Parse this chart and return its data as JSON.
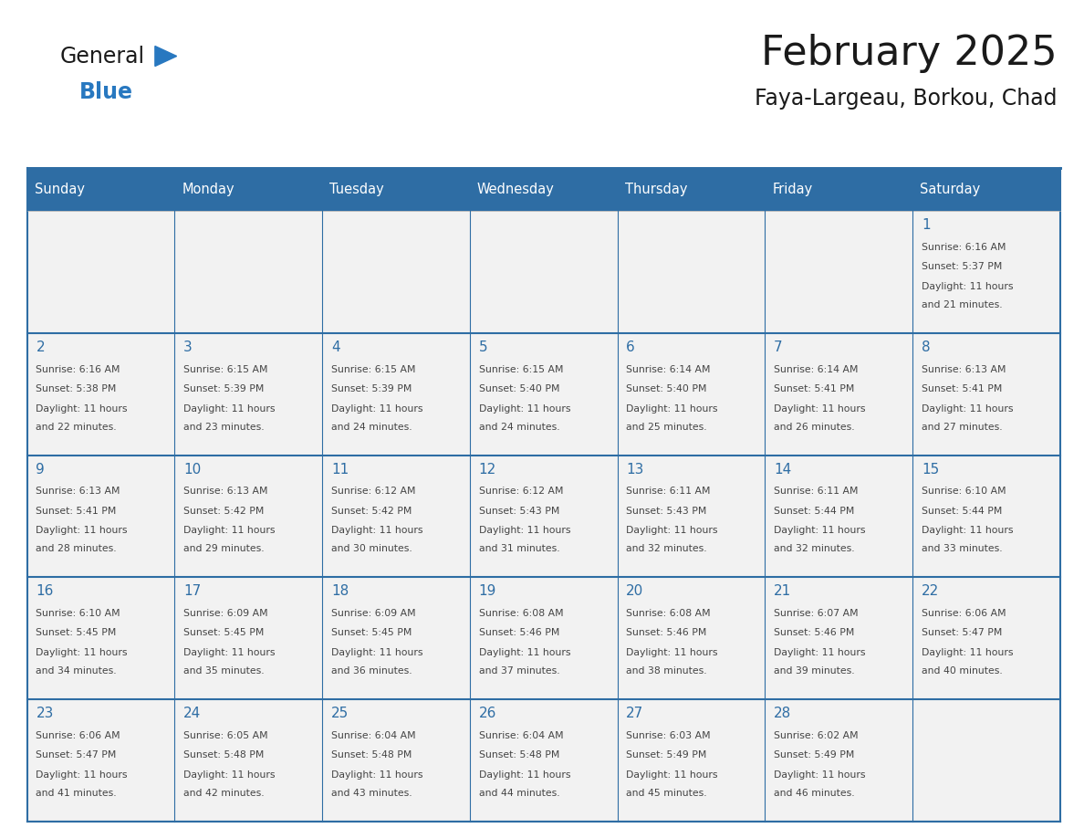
{
  "title": "February 2025",
  "subtitle": "Faya-Largeau, Borkou, Chad",
  "header_bg": "#2E6DA4",
  "header_text_color": "#FFFFFF",
  "cell_bg": "#F2F2F2",
  "day_headers": [
    "Sunday",
    "Monday",
    "Tuesday",
    "Wednesday",
    "Thursday",
    "Friday",
    "Saturday"
  ],
  "title_color": "#1a1a1a",
  "subtitle_color": "#1a1a1a",
  "day_number_color": "#2E6DA4",
  "cell_text_color": "#444444",
  "grid_color": "#2E6DA4",
  "logo_general_color": "#1a1a1a",
  "logo_blue_color": "#2878C0",
  "logo_triangle_color": "#2878C0",
  "days": [
    {
      "day": 1,
      "col": 6,
      "row": 0,
      "sunrise": "6:16 AM",
      "sunset": "5:37 PM",
      "daylight": "11 hours and 21 minutes."
    },
    {
      "day": 2,
      "col": 0,
      "row": 1,
      "sunrise": "6:16 AM",
      "sunset": "5:38 PM",
      "daylight": "11 hours and 22 minutes."
    },
    {
      "day": 3,
      "col": 1,
      "row": 1,
      "sunrise": "6:15 AM",
      "sunset": "5:39 PM",
      "daylight": "11 hours and 23 minutes."
    },
    {
      "day": 4,
      "col": 2,
      "row": 1,
      "sunrise": "6:15 AM",
      "sunset": "5:39 PM",
      "daylight": "11 hours and 24 minutes."
    },
    {
      "day": 5,
      "col": 3,
      "row": 1,
      "sunrise": "6:15 AM",
      "sunset": "5:40 PM",
      "daylight": "11 hours and 24 minutes."
    },
    {
      "day": 6,
      "col": 4,
      "row": 1,
      "sunrise": "6:14 AM",
      "sunset": "5:40 PM",
      "daylight": "11 hours and 25 minutes."
    },
    {
      "day": 7,
      "col": 5,
      "row": 1,
      "sunrise": "6:14 AM",
      "sunset": "5:41 PM",
      "daylight": "11 hours and 26 minutes."
    },
    {
      "day": 8,
      "col": 6,
      "row": 1,
      "sunrise": "6:13 AM",
      "sunset": "5:41 PM",
      "daylight": "11 hours and 27 minutes."
    },
    {
      "day": 9,
      "col": 0,
      "row": 2,
      "sunrise": "6:13 AM",
      "sunset": "5:41 PM",
      "daylight": "11 hours and 28 minutes."
    },
    {
      "day": 10,
      "col": 1,
      "row": 2,
      "sunrise": "6:13 AM",
      "sunset": "5:42 PM",
      "daylight": "11 hours and 29 minutes."
    },
    {
      "day": 11,
      "col": 2,
      "row": 2,
      "sunrise": "6:12 AM",
      "sunset": "5:42 PM",
      "daylight": "11 hours and 30 minutes."
    },
    {
      "day": 12,
      "col": 3,
      "row": 2,
      "sunrise": "6:12 AM",
      "sunset": "5:43 PM",
      "daylight": "11 hours and 31 minutes."
    },
    {
      "day": 13,
      "col": 4,
      "row": 2,
      "sunrise": "6:11 AM",
      "sunset": "5:43 PM",
      "daylight": "11 hours and 32 minutes."
    },
    {
      "day": 14,
      "col": 5,
      "row": 2,
      "sunrise": "6:11 AM",
      "sunset": "5:44 PM",
      "daylight": "11 hours and 32 minutes."
    },
    {
      "day": 15,
      "col": 6,
      "row": 2,
      "sunrise": "6:10 AM",
      "sunset": "5:44 PM",
      "daylight": "11 hours and 33 minutes."
    },
    {
      "day": 16,
      "col": 0,
      "row": 3,
      "sunrise": "6:10 AM",
      "sunset": "5:45 PM",
      "daylight": "11 hours and 34 minutes."
    },
    {
      "day": 17,
      "col": 1,
      "row": 3,
      "sunrise": "6:09 AM",
      "sunset": "5:45 PM",
      "daylight": "11 hours and 35 minutes."
    },
    {
      "day": 18,
      "col": 2,
      "row": 3,
      "sunrise": "6:09 AM",
      "sunset": "5:45 PM",
      "daylight": "11 hours and 36 minutes."
    },
    {
      "day": 19,
      "col": 3,
      "row": 3,
      "sunrise": "6:08 AM",
      "sunset": "5:46 PM",
      "daylight": "11 hours and 37 minutes."
    },
    {
      "day": 20,
      "col": 4,
      "row": 3,
      "sunrise": "6:08 AM",
      "sunset": "5:46 PM",
      "daylight": "11 hours and 38 minutes."
    },
    {
      "day": 21,
      "col": 5,
      "row": 3,
      "sunrise": "6:07 AM",
      "sunset": "5:46 PM",
      "daylight": "11 hours and 39 minutes."
    },
    {
      "day": 22,
      "col": 6,
      "row": 3,
      "sunrise": "6:06 AM",
      "sunset": "5:47 PM",
      "daylight": "11 hours and 40 minutes."
    },
    {
      "day": 23,
      "col": 0,
      "row": 4,
      "sunrise": "6:06 AM",
      "sunset": "5:47 PM",
      "daylight": "11 hours and 41 minutes."
    },
    {
      "day": 24,
      "col": 1,
      "row": 4,
      "sunrise": "6:05 AM",
      "sunset": "5:48 PM",
      "daylight": "11 hours and 42 minutes."
    },
    {
      "day": 25,
      "col": 2,
      "row": 4,
      "sunrise": "6:04 AM",
      "sunset": "5:48 PM",
      "daylight": "11 hours and 43 minutes."
    },
    {
      "day": 26,
      "col": 3,
      "row": 4,
      "sunrise": "6:04 AM",
      "sunset": "5:48 PM",
      "daylight": "11 hours and 44 minutes."
    },
    {
      "day": 27,
      "col": 4,
      "row": 4,
      "sunrise": "6:03 AM",
      "sunset": "5:49 PM",
      "daylight": "11 hours and 45 minutes."
    },
    {
      "day": 28,
      "col": 5,
      "row": 4,
      "sunrise": "6:02 AM",
      "sunset": "5:49 PM",
      "daylight": "11 hours and 46 minutes."
    }
  ]
}
